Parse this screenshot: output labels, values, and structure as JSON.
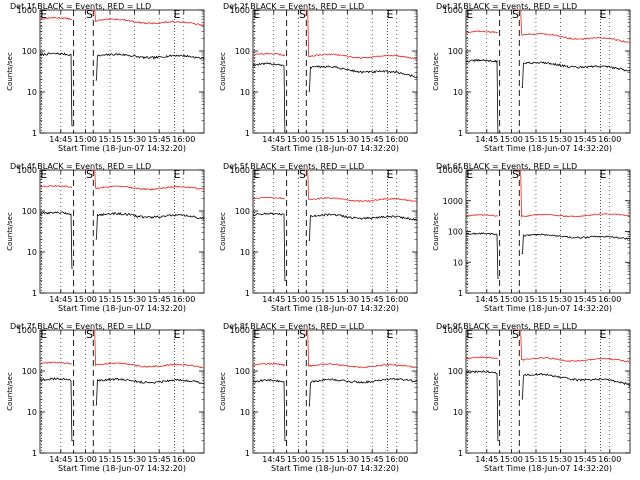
{
  "chart_data": {
    "type": "line",
    "ylabel": "Counts/sec",
    "xlabel": "Start Time (18-Jun-07 14:32:20)",
    "x_ticks": [
      "14:45",
      "15:00",
      "15:15",
      "15:30",
      "15:45",
      "16:00"
    ],
    "x_range_minutes_from_start": [
      0,
      100
    ],
    "markers": {
      "E": "E",
      "S": "S"
    },
    "series_colors": {
      "events": "#000000",
      "lld": "#e8261b"
    },
    "panels": [
      {
        "title": "Det 1f BLACK = Events, RED = LLD",
        "ylim": [
          1,
          1000
        ],
        "yticks": [
          "1",
          "10",
          "100",
          "1000"
        ],
        "events": {
          "start": 80,
          "end": 70,
          "dip_min": 1.5
        },
        "lld": {
          "start": 600,
          "end": 450,
          "peak": 1000
        }
      },
      {
        "title": "Det 2f BLACK = Events, RED = LLD",
        "ylim": [
          1,
          1000
        ],
        "yticks": [
          "1",
          "10",
          "100",
          "1000"
        ],
        "events": {
          "start": 45,
          "end": 25,
          "dip_min": 1.0
        },
        "lld": {
          "start": 80,
          "end": 70,
          "peak": 1000
        }
      },
      {
        "title": "Det 3f BLACK = Events, RED = LLD",
        "ylim": [
          1,
          1000
        ],
        "yticks": [
          "1",
          "10",
          "100",
          "1000"
        ],
        "events": {
          "start": 55,
          "end": 35,
          "dip_min": 1.0
        },
        "lld": {
          "start": 280,
          "end": 170,
          "peak": 1000
        }
      },
      {
        "title": "Det 4f BLACK = Events, RED = LLD",
        "ylim": [
          1,
          1000
        ],
        "yticks": [
          "1",
          "10",
          "100",
          "1000"
        ],
        "events": {
          "start": 85,
          "end": 70,
          "dip_min": 4.0
        },
        "lld": {
          "start": 380,
          "end": 360,
          "peak": 1000
        }
      },
      {
        "title": "Det 5f BLACK = Events, RED = LLD",
        "ylim": [
          1,
          1000
        ],
        "yticks": [
          "1",
          "10",
          "100",
          "1000"
        ],
        "events": {
          "start": 80,
          "end": 65,
          "dip_min": 2.0
        },
        "lld": {
          "start": 200,
          "end": 180,
          "peak": 1000
        }
      },
      {
        "title": "Det 6f BLACK = Events, RED = LLD",
        "ylim": [
          1,
          10000
        ],
        "yticks": [
          "1",
          "10",
          "100",
          "1000",
          "10000"
        ],
        "events": {
          "start": 80,
          "end": 60,
          "dip_min": 3.0
        },
        "lld": {
          "start": 320,
          "end": 350,
          "peak": 9000
        }
      },
      {
        "title": "Det 7f BLACK = Events, RED = LLD",
        "ylim": [
          1,
          1000
        ],
        "yticks": [
          "1",
          "10",
          "100",
          "1000"
        ],
        "events": {
          "start": 60,
          "end": 55,
          "dip_min": 2.0
        },
        "lld": {
          "start": 150,
          "end": 130,
          "peak": 1000
        }
      },
      {
        "title": "Det 8f BLACK = Events, RED = LLD",
        "ylim": [
          1,
          1000
        ],
        "yticks": [
          "1",
          "10",
          "100",
          "1000"
        ],
        "events": {
          "start": 55,
          "end": 60,
          "dip_min": 2.0
        },
        "lld": {
          "start": 140,
          "end": 130,
          "peak": 1000
        }
      },
      {
        "title": "Det 9f BLACK = Events, RED = LLD",
        "ylim": [
          1,
          1000
        ],
        "yticks": [
          "1",
          "10",
          "100",
          "1000"
        ],
        "events": {
          "start": 90,
          "end": 50,
          "dip_min": 2.0
        },
        "lld": {
          "start": 200,
          "end": 180,
          "peak": 1000
        }
      }
    ]
  }
}
